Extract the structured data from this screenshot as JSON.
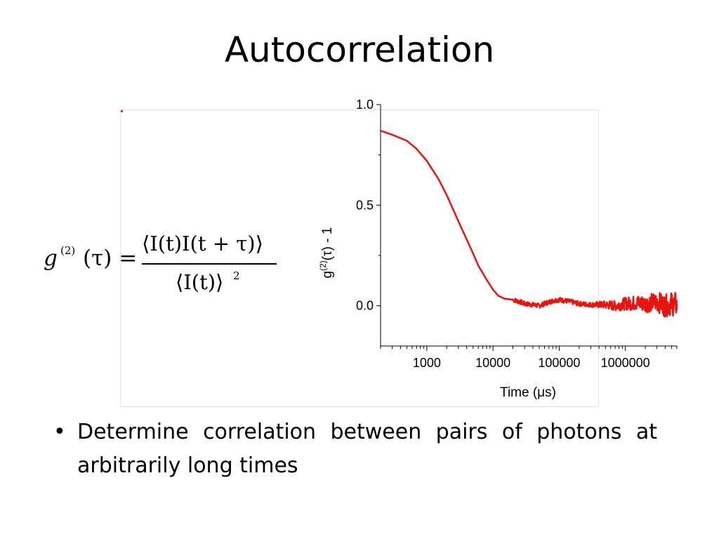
{
  "slide": {
    "title": "Autocorrelation",
    "bullet": "Determine correlation between pairs of photons at arbitrarily long times"
  },
  "formula": {
    "lhs": "g",
    "superscript": "(2)",
    "lhs_arg": "(τ) =",
    "numerator": "⟨I(t)I(t + τ)⟩",
    "denominator": "⟨I(t)⟩",
    "denominator_power": "2"
  },
  "chart_data": {
    "type": "line",
    "title": "",
    "xlabel": "Time (μs)",
    "ylabel": "g(2)(τ) - 1",
    "ylabel_parts": {
      "base": "g",
      "sup": "(2)",
      "arg": "(τ) - 1"
    },
    "x_scale": "log",
    "xlim": [
      200,
      6000000
    ],
    "ylim": [
      -0.2,
      1.0
    ],
    "x_ticks": [
      1000,
      10000,
      100000,
      1000000
    ],
    "x_tick_labels": [
      "1000",
      "10000",
      "100000",
      "1000000"
    ],
    "y_ticks": [
      0.0,
      0.5,
      1.0
    ],
    "y_tick_labels": [
      "0.0",
      "0.5",
      "1.0"
    ],
    "grid": false,
    "line_color": "#e8140e",
    "series": [
      {
        "x": [
          200,
          300,
          500,
          700,
          1000,
          1500,
          2000,
          3000,
          4000,
          5000,
          6000,
          8000,
          10000,
          12000,
          15000,
          20000,
          25000,
          30000,
          40000,
          50000,
          60000,
          80000,
          100000,
          150000,
          200000,
          300000,
          500000,
          700000,
          1000000,
          1500000,
          2000000,
          3000000,
          4000000,
          5000000,
          6000000
        ],
        "y": [
          0.87,
          0.85,
          0.82,
          0.78,
          0.72,
          0.63,
          0.55,
          0.42,
          0.33,
          0.26,
          0.2,
          0.13,
          0.08,
          0.05,
          0.035,
          0.03,
          0.02,
          0.01,
          0.005,
          0.0,
          0.01,
          0.025,
          0.03,
          0.02,
          0.01,
          0.005,
          0.005,
          0.0,
          0.01,
          0.015,
          0.01,
          0.02,
          0.0,
          0.01,
          0.005
        ]
      }
    ]
  }
}
